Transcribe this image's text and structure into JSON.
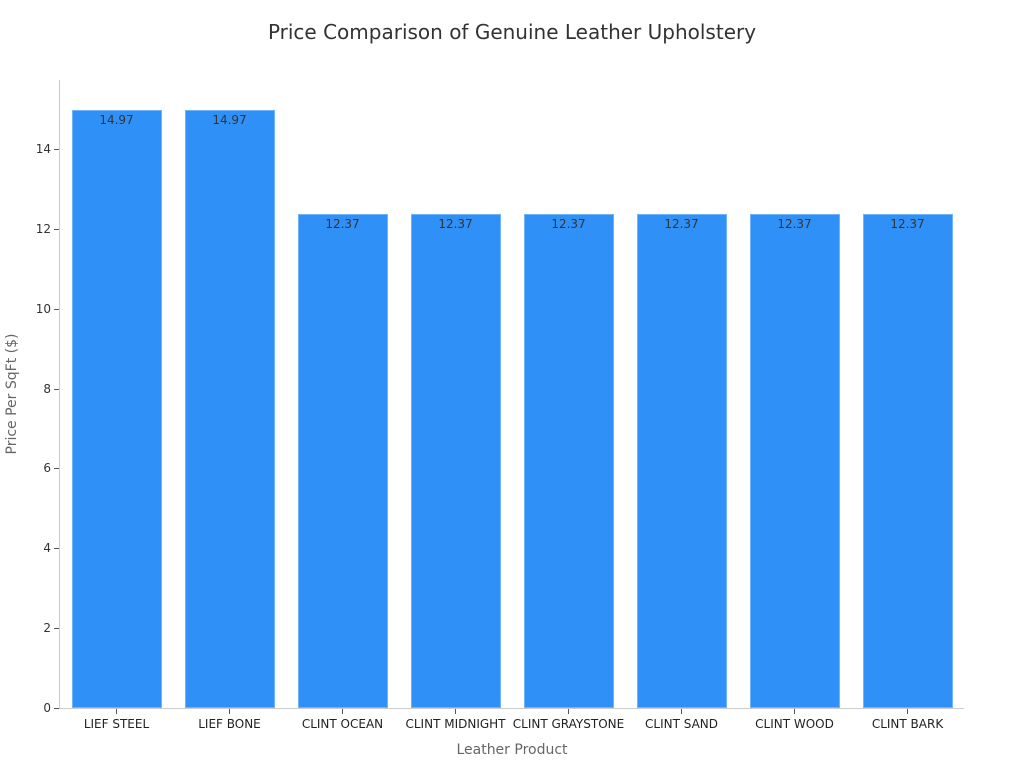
{
  "chart_data": {
    "type": "bar",
    "title": "Price Comparison of Genuine Leather Upholstery",
    "xlabel": "Leather Product",
    "ylabel": "Price Per SqFt ($)",
    "categories": [
      "LIEF STEEL",
      "LIEF BONE",
      "CLINT OCEAN",
      "CLINT MIDNIGHT",
      "CLINT GRAYSTONE",
      "CLINT SAND",
      "CLINT WOOD",
      "CLINT BARK"
    ],
    "values": [
      14.97,
      14.97,
      12.37,
      12.37,
      12.37,
      12.37,
      12.37,
      12.37
    ],
    "value_labels": [
      "14.97",
      "14.97",
      "12.37",
      "12.37",
      "12.37",
      "12.37",
      "12.37",
      "12.37"
    ],
    "yticks": [
      "0",
      "2",
      "4",
      "6",
      "8",
      "10",
      "12",
      "14"
    ],
    "ylim": [
      0,
      15.7
    ],
    "grid": false,
    "legend": null,
    "bar_color": "#2f91f7"
  }
}
